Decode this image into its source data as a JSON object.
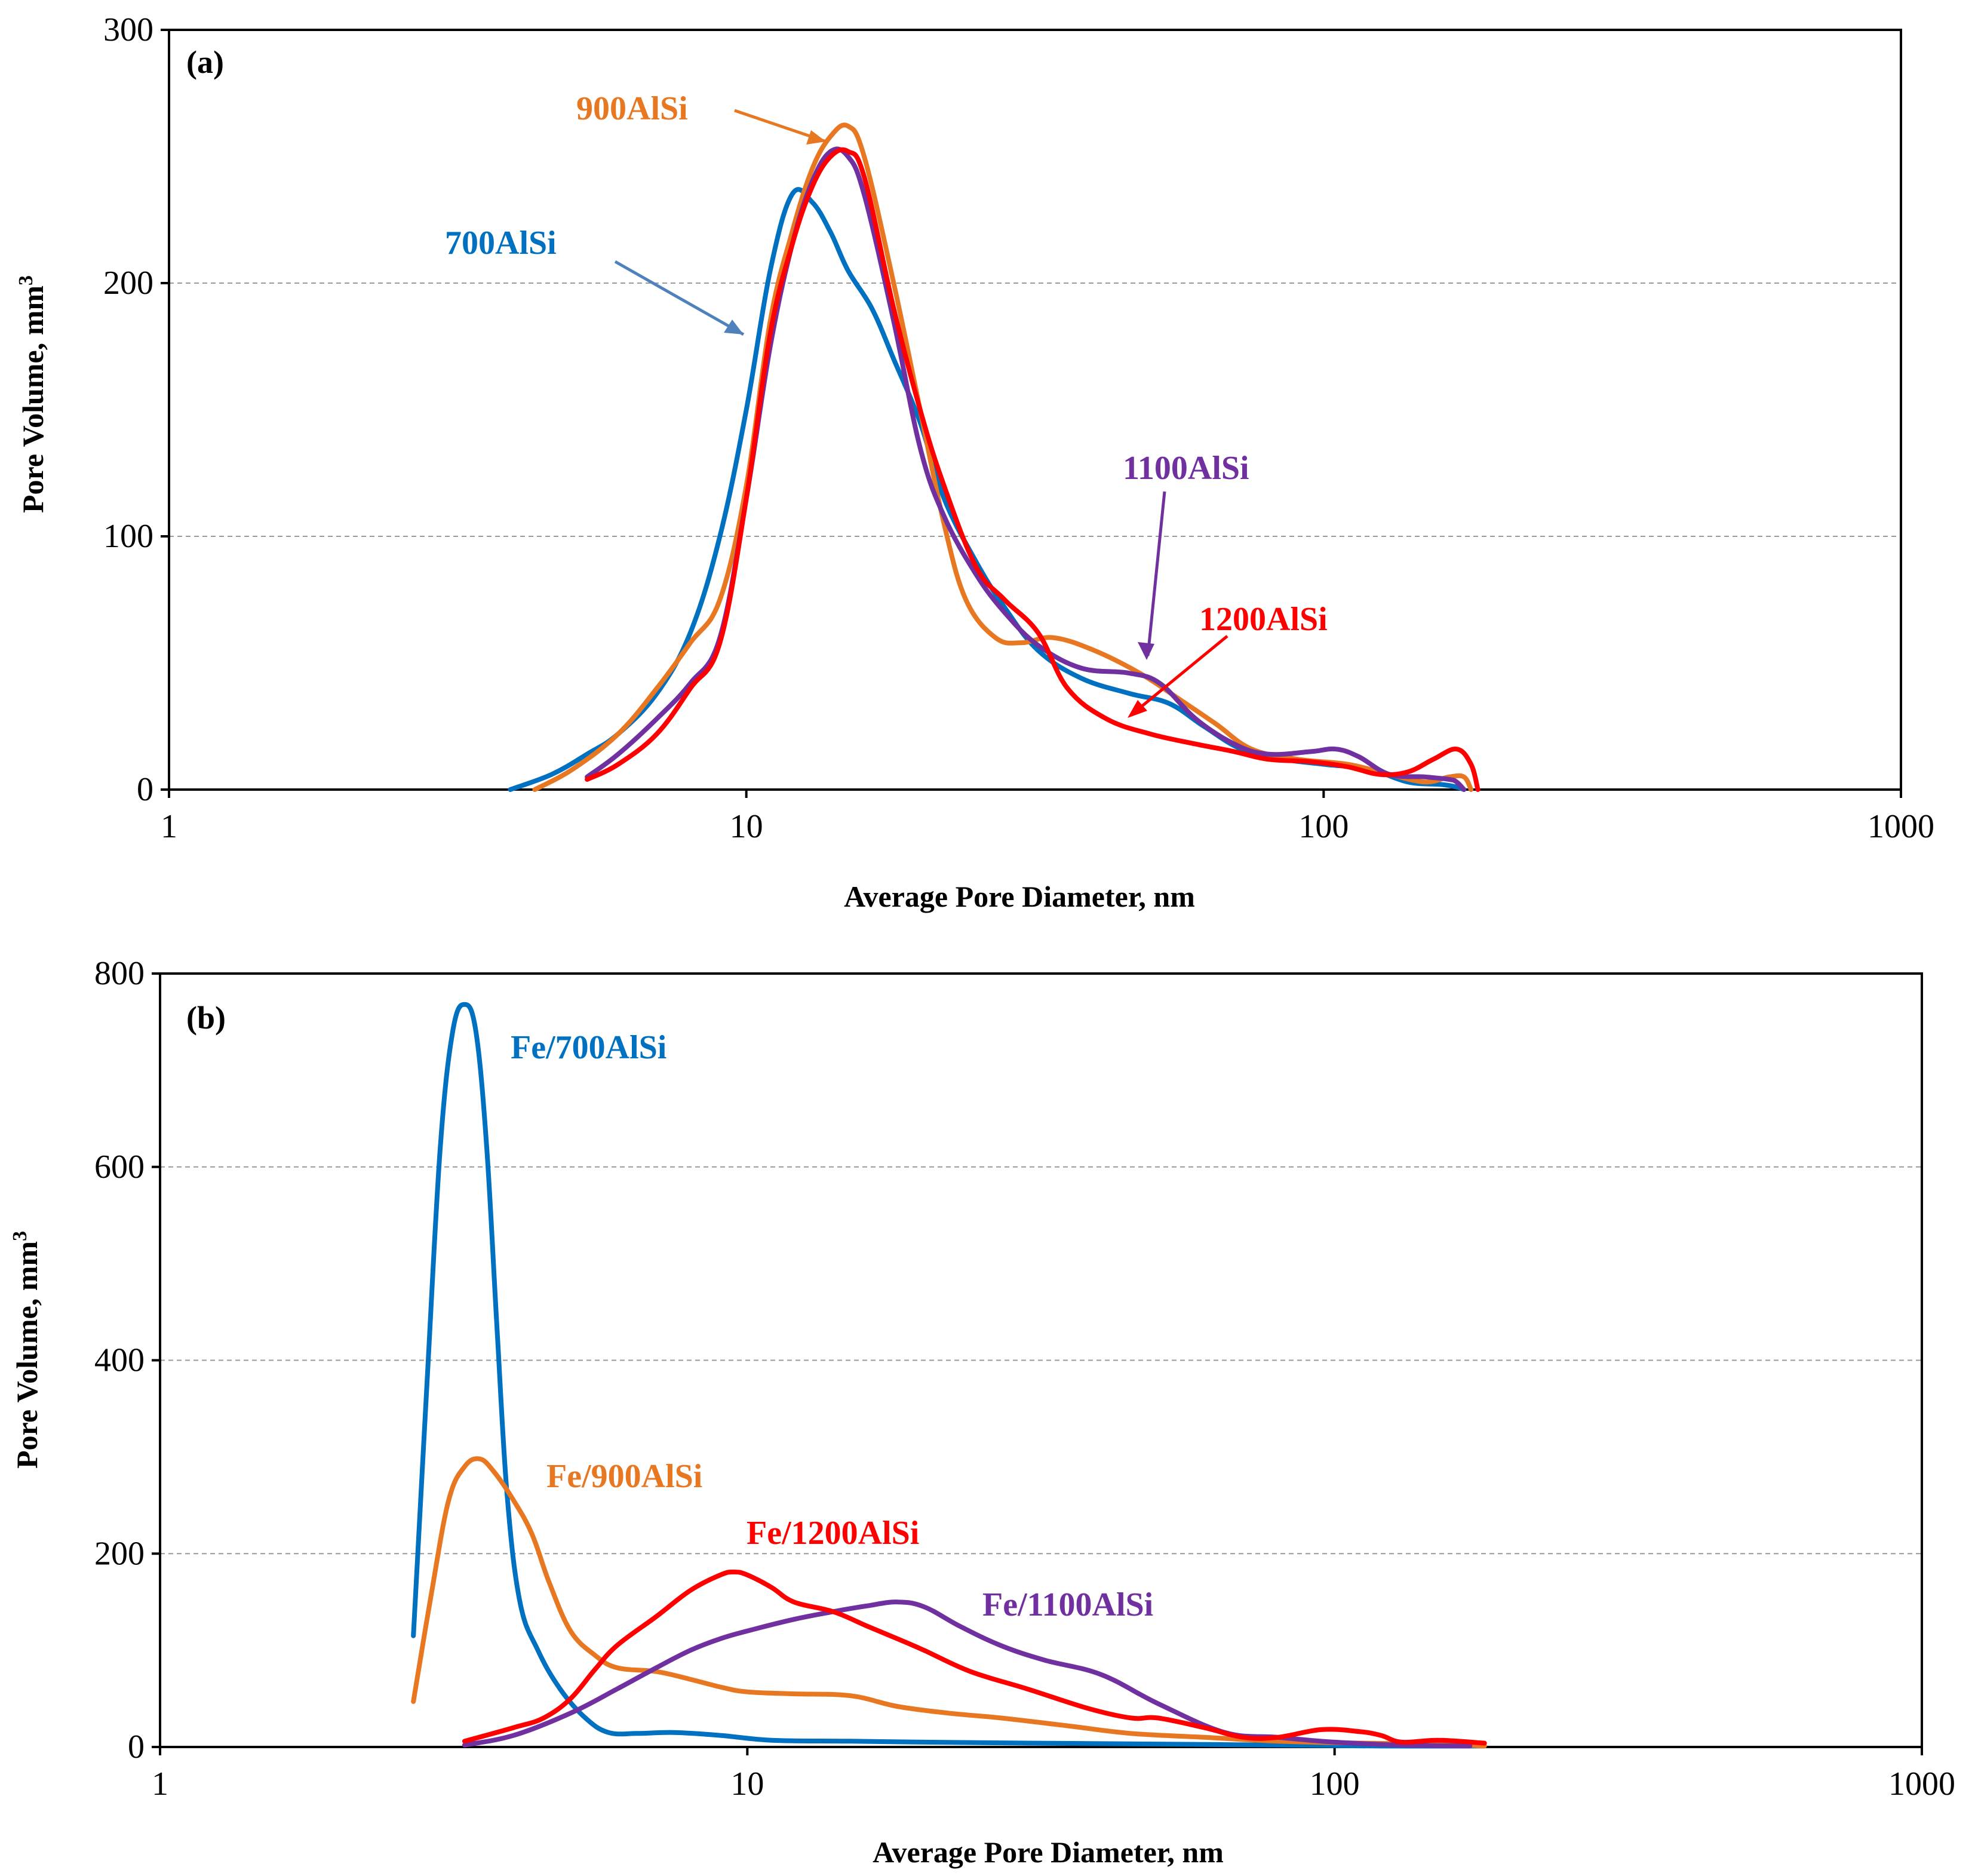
{
  "chart_data": [
    {
      "panel": "(a)",
      "type": "line",
      "xscale": "log",
      "xlim": [
        1,
        1000
      ],
      "ylim": [
        0,
        300
      ],
      "xticks": [
        1,
        10,
        100,
        1000
      ],
      "yticks": [
        0,
        100,
        200,
        300
      ],
      "xlabel": "Average Pore Diameter, nm",
      "ylabel": "Pore Volume, mm",
      "ylabel_sup": "3",
      "grid": "horizontal dashed",
      "series": [
        {
          "name": "700AlSi",
          "color": "#0070C0",
          "x": [
            3.9,
            4.6,
            5.3,
            6,
            7,
            8,
            9,
            10,
            11,
            12,
            13,
            14,
            15,
            16.5,
            18,
            20,
            22,
            25,
            28,
            32,
            38,
            46,
            54,
            62,
            72,
            85,
            100,
            120,
            140,
            160,
            170,
            175
          ],
          "y": [
            0,
            6,
            14,
            22,
            38,
            62,
            100,
            150,
            205,
            235,
            232,
            220,
            205,
            190,
            170,
            145,
            115,
            90,
            72,
            55,
            44,
            38,
            34,
            25,
            16,
            12,
            10,
            8,
            3,
            2,
            1,
            0
          ]
        },
        {
          "name": "900AlSi",
          "color": "#E87722",
          "x": [
            4.3,
            5,
            6,
            7,
            8,
            9,
            10,
            11,
            12,
            13,
            14,
            15,
            16,
            18,
            20,
            22,
            24,
            27,
            30,
            34,
            40,
            48,
            56,
            65,
            75,
            90,
            110,
            130,
            150,
            165,
            175,
            180
          ],
          "y": [
            0,
            8,
            22,
            40,
            58,
            75,
            120,
            185,
            220,
            245,
            258,
            262,
            250,
            200,
            150,
            105,
            75,
            60,
            58,
            60,
            55,
            46,
            36,
            26,
            16,
            12,
            10,
            6,
            3,
            5,
            5,
            0
          ]
        },
        {
          "name": "1100AlSi",
          "color": "#7030A0",
          "x": [
            5.3,
            6,
            7,
            8,
            9,
            10,
            11,
            12,
            13,
            14,
            15,
            16,
            18,
            20,
            22,
            25,
            28,
            32,
            38,
            46,
            52,
            60,
            70,
            80,
            95,
            105,
            115,
            130,
            150,
            165,
            170,
            175
          ],
          "y": [
            5,
            14,
            28,
            42,
            60,
            115,
            175,
            215,
            240,
            252,
            250,
            235,
            185,
            135,
            108,
            85,
            70,
            57,
            48,
            46,
            42,
            28,
            18,
            14,
            15,
            16,
            13,
            6,
            5,
            4,
            3,
            0
          ]
        },
        {
          "name": "1200AlSi",
          "color": "#FF0000",
          "x": [
            5.3,
            6,
            7,
            8,
            9,
            10,
            11,
            12,
            13,
            14,
            15,
            16,
            18,
            20,
            22,
            25,
            28,
            32,
            36,
            42,
            50,
            60,
            70,
            80,
            95,
            110,
            125,
            140,
            155,
            170,
            180,
            185
          ],
          "y": [
            4,
            10,
            22,
            40,
            58,
            115,
            180,
            215,
            238,
            250,
            252,
            242,
            190,
            150,
            120,
            88,
            75,
            62,
            40,
            28,
            22,
            18,
            15,
            12,
            11,
            9,
            6,
            7,
            12,
            16,
            10,
            0
          ]
        }
      ],
      "annotations": [
        {
          "text": "700AlSi",
          "color": "#0070C0"
        },
        {
          "text": "900AlSi",
          "color": "#E87722"
        },
        {
          "text": "1100AlSi",
          "color": "#7030A0"
        },
        {
          "text": "1200AlSi",
          "color": "#FF0000"
        }
      ]
    },
    {
      "panel": "(b)",
      "type": "line",
      "xscale": "log",
      "xlim": [
        1,
        1000
      ],
      "ylim": [
        0,
        800
      ],
      "xticks": [
        1,
        10,
        100,
        1000
      ],
      "yticks": [
        0,
        200,
        400,
        600,
        800
      ],
      "xlabel": "Average Pore Diameter, nm",
      "ylabel": "Pore Volume, mm",
      "ylabel_sup": "3",
      "grid": "horizontal dashed",
      "series": [
        {
          "name": "Fe/700AlSi",
          "color": "#0070C0",
          "x": [
            2.7,
            2.85,
            3.0,
            3.15,
            3.3,
            3.45,
            3.6,
            3.75,
            3.9,
            4.1,
            4.4,
            4.8,
            5.3,
            5.8,
            6.5,
            7.5,
            9,
            11,
            15,
            20,
            30,
            50,
            80,
            120,
            180
          ],
          "y": [
            115,
            380,
            620,
            740,
            768,
            740,
            620,
            430,
            260,
            150,
            100,
            60,
            30,
            15,
            14,
            15,
            12,
            7,
            6,
            5,
            4,
            3,
            2,
            1,
            1
          ]
        },
        {
          "name": "Fe/900AlSi",
          "color": "#E87722",
          "x": [
            2.7,
            2.9,
            3.1,
            3.3,
            3.5,
            3.7,
            4.0,
            4.3,
            4.6,
            5.0,
            5.5,
            6.0,
            7.0,
            8.0,
            9.0,
            10,
            12,
            15,
            18,
            22,
            27,
            35,
            45,
            60,
            80,
            110,
            150,
            180
          ],
          "y": [
            47,
            160,
            255,
            290,
            298,
            285,
            255,
            220,
            170,
            120,
            95,
            82,
            78,
            70,
            62,
            57,
            55,
            53,
            42,
            35,
            30,
            22,
            14,
            10,
            6,
            4,
            3,
            1
          ]
        },
        {
          "name": "Fe/1100AlSi",
          "color": "#7030A0",
          "x": [
            3.3,
            4.0,
            5.0,
            6.0,
            7.0,
            8.0,
            9.0,
            10,
            12,
            14,
            16,
            18,
            20,
            23,
            27,
            32,
            40,
            50,
            65,
            80,
            100,
            130,
            170
          ],
          "y": [
            2,
            12,
            35,
            60,
            82,
            100,
            112,
            120,
            132,
            140,
            146,
            150,
            145,
            125,
            105,
            90,
            75,
            45,
            15,
            10,
            5,
            2,
            1
          ]
        },
        {
          "name": "Fe/1200AlSi",
          "color": "#FF0000",
          "x": [
            3.3,
            4.0,
            4.5,
            5.0,
            5.5,
            6.0,
            7.0,
            8.0,
            9.0,
            9.5,
            10,
            11,
            12,
            14,
            16,
            18,
            20,
            24,
            30,
            38,
            45,
            50,
            60,
            70,
            80,
            95,
            110,
            120,
            130,
            150,
            180
          ],
          "y": [
            6,
            20,
            30,
            50,
            80,
            105,
            135,
            162,
            178,
            181,
            178,
            165,
            150,
            140,
            125,
            112,
            100,
            78,
            60,
            40,
            30,
            30,
            20,
            10,
            10,
            18,
            16,
            12,
            5,
            7,
            4
          ]
        }
      ],
      "annotations": [
        {
          "text": "Fe/700AlSi",
          "color": "#0070C0"
        },
        {
          "text": "Fe/900AlSi",
          "color": "#E87722"
        },
        {
          "text": "Fe/1200AlSi",
          "color": "#FF0000"
        },
        {
          "text": "Fe/1100AlSi",
          "color": "#7030A0"
        }
      ]
    }
  ]
}
